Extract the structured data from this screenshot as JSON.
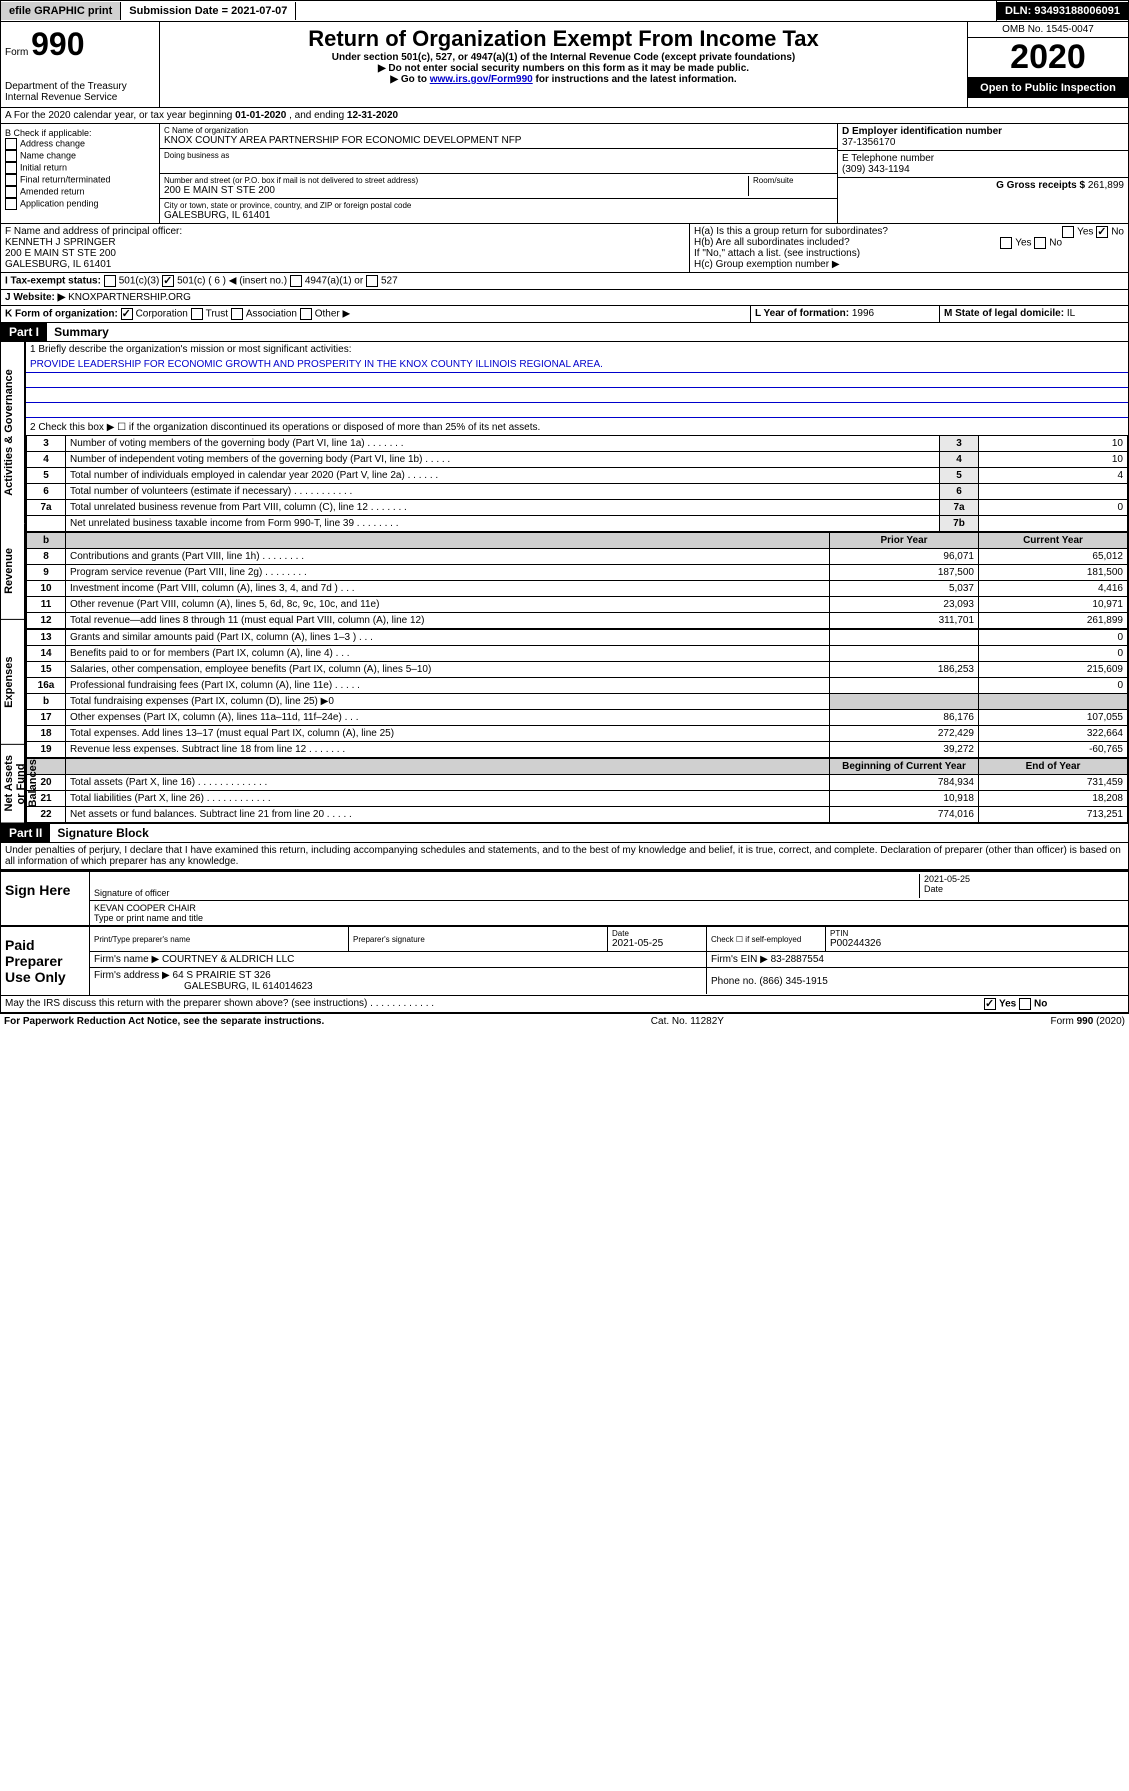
{
  "topbar": {
    "efile": "efile GRAPHIC print",
    "submission_label": "Submission Date =",
    "submission_date": "2021-07-07",
    "dln_label": "DLN:",
    "dln": "93493188006091"
  },
  "header": {
    "form_prefix": "Form",
    "form_number": "990",
    "dept": "Department of the Treasury",
    "irs": "Internal Revenue Service",
    "title": "Return of Organization Exempt From Income Tax",
    "subtitle1": "Under section 501(c), 527, or 4947(a)(1) of the Internal Revenue Code (except private foundations)",
    "subtitle2": "▶ Do not enter social security numbers on this form as it may be made public.",
    "subtitle3_pre": "▶ Go to ",
    "subtitle3_link": "www.irs.gov/Form990",
    "subtitle3_post": " for instructions and the latest information.",
    "omb": "OMB No. 1545-0047",
    "year": "2020",
    "open_public": "Open to Public Inspection"
  },
  "section_a": {
    "text_pre": "A For the 2020 calendar year, or tax year beginning ",
    "begin": "01-01-2020",
    "mid": " , and ending ",
    "end": "12-31-2020"
  },
  "box_b": {
    "label": "B Check if applicable:",
    "items": [
      "Address change",
      "Name change",
      "Initial return",
      "Final return/terminated",
      "Amended return",
      "Application pending"
    ]
  },
  "box_c": {
    "name_label": "C Name of organization",
    "name": "KNOX COUNTY AREA PARTNERSHIP FOR ECONOMIC DEVELOPMENT NFP",
    "dba_label": "Doing business as",
    "addr_label": "Number and street (or P.O. box if mail is not delivered to street address)",
    "room_label": "Room/suite",
    "addr": "200 E MAIN ST STE 200",
    "city_label": "City or town, state or province, country, and ZIP or foreign postal code",
    "city": "GALESBURG, IL  61401"
  },
  "box_d": {
    "label": "D Employer identification number",
    "value": "37-1356170"
  },
  "box_e": {
    "label": "E Telephone number",
    "value": "(309) 343-1194"
  },
  "box_g": {
    "label": "G Gross receipts $",
    "value": "261,899"
  },
  "box_f": {
    "label": "F  Name and address of principal officer:",
    "name": "KENNETH J SPRINGER",
    "addr1": "200 E MAIN ST STE 200",
    "addr2": "GALESBURG, IL  61401"
  },
  "box_h": {
    "ha": "H(a)  Is this a group return for subordinates?",
    "hb": "H(b)  Are all subordinates included?",
    "hb_note": "If \"No,\" attach a list. (see instructions)",
    "hc": "H(c)  Group exemption number ▶",
    "yes": "Yes",
    "no": "No"
  },
  "box_i": {
    "label": "I  Tax-exempt status:",
    "o1": "501(c)(3)",
    "o2": "501(c) ( 6 ) ◀ (insert no.)",
    "o3": "4947(a)(1) or",
    "o4": "527"
  },
  "box_j": {
    "label": "J  Website: ▶",
    "value": "KNOXPARTNERSHIP.ORG"
  },
  "box_k": {
    "label": "K Form of organization:",
    "o1": "Corporation",
    "o2": "Trust",
    "o3": "Association",
    "o4": "Other ▶"
  },
  "box_l": {
    "label": "L Year of formation:",
    "value": "1996"
  },
  "box_m": {
    "label": "M State of legal domicile:",
    "value": "IL"
  },
  "part1": {
    "hdr": "Part I",
    "title": "Summary",
    "side1": "Activities & Governance",
    "side2": "Revenue",
    "side3": "Expenses",
    "side4": "Net Assets or Fund Balances",
    "q1": "1  Briefly describe the organization's mission or most significant activities:",
    "mission": "PROVIDE LEADERSHIP FOR ECONOMIC GROWTH AND PROSPERITY IN THE KNOX COUNTY ILLINOIS REGIONAL AREA.",
    "q2": "2   Check this box ▶ ☐  if the organization discontinued its operations or disposed of more than 25% of its net assets.",
    "rows_gov": [
      {
        "n": "3",
        "t": "Number of voting members of the governing body (Part VI, line 1a)  .   .   .   .   .   .   .",
        "rn": "3",
        "v": "10"
      },
      {
        "n": "4",
        "t": "Number of independent voting members of the governing body (Part VI, line 1b)  .   .   .   .   .",
        "rn": "4",
        "v": "10"
      },
      {
        "n": "5",
        "t": "Total number of individuals employed in calendar year 2020 (Part V, line 2a)  .   .   .   .   .   .",
        "rn": "5",
        "v": "4"
      },
      {
        "n": "6",
        "t": "Total number of volunteers (estimate if necessary)  .   .   .   .   .   .   .   .   .   .   .",
        "rn": "6",
        "v": ""
      },
      {
        "n": "7a",
        "t": "Total unrelated business revenue from Part VIII, column (C), line 12  .   .   .   .   .   .   .",
        "rn": "7a",
        "v": "0"
      },
      {
        "n": "",
        "t": "Net unrelated business taxable income from Form 990-T, line 39  .   .   .   .   .   .   .   .",
        "rn": "7b",
        "v": ""
      }
    ],
    "col_prior": "Prior Year",
    "col_current": "Current Year",
    "rows_rev": [
      {
        "n": "8",
        "t": "Contributions and grants (Part VIII, line 1h)  .   .   .   .   .   .   .   .",
        "p": "96,071",
        "c": "65,012"
      },
      {
        "n": "9",
        "t": "Program service revenue (Part VIII, line 2g)  .   .   .   .   .   .   .   .",
        "p": "187,500",
        "c": "181,500"
      },
      {
        "n": "10",
        "t": "Investment income (Part VIII, column (A), lines 3, 4, and 7d )  .   .   .",
        "p": "5,037",
        "c": "4,416"
      },
      {
        "n": "11",
        "t": "Other revenue (Part VIII, column (A), lines 5, 6d, 8c, 9c, 10c, and 11e)",
        "p": "23,093",
        "c": "10,971"
      },
      {
        "n": "12",
        "t": "Total revenue—add lines 8 through 11 (must equal Part VIII, column (A), line 12)",
        "p": "311,701",
        "c": "261,899"
      }
    ],
    "rows_exp": [
      {
        "n": "13",
        "t": "Grants and similar amounts paid (Part IX, column (A), lines 1–3 )  .   .   .",
        "p": "",
        "c": "0"
      },
      {
        "n": "14",
        "t": "Benefits paid to or for members (Part IX, column (A), line 4)  .   .   .",
        "p": "",
        "c": "0"
      },
      {
        "n": "15",
        "t": "Salaries, other compensation, employee benefits (Part IX, column (A), lines 5–10)",
        "p": "186,253",
        "c": "215,609"
      },
      {
        "n": "16a",
        "t": "Professional fundraising fees (Part IX, column (A), line 11e)  .   .   .   .   .",
        "p": "",
        "c": "0"
      },
      {
        "n": "b",
        "t": "Total fundraising expenses (Part IX, column (D), line 25) ▶0",
        "p": "shade",
        "c": "shade"
      },
      {
        "n": "17",
        "t": "Other expenses (Part IX, column (A), lines 11a–11d, 11f–24e)  .   .   .",
        "p": "86,176",
        "c": "107,055"
      },
      {
        "n": "18",
        "t": "Total expenses. Add lines 13–17 (must equal Part IX, column (A), line 25)",
        "p": "272,429",
        "c": "322,664"
      },
      {
        "n": "19",
        "t": "Revenue less expenses. Subtract line 18 from line 12  .   .   .   .   .   .   .",
        "p": "39,272",
        "c": "-60,765"
      }
    ],
    "col_begin": "Beginning of Current Year",
    "col_end": "End of Year",
    "rows_net": [
      {
        "n": "20",
        "t": "Total assets (Part X, line 16)  .   .   .   .   .   .   .   .   .   .   .   .   .",
        "p": "784,934",
        "c": "731,459"
      },
      {
        "n": "21",
        "t": "Total liabilities (Part X, line 26)  .   .   .   .   .   .   .   .   .   .   .   .",
        "p": "10,918",
        "c": "18,208"
      },
      {
        "n": "22",
        "t": "Net assets or fund balances. Subtract line 21 from line 20  .   .   .   .   .",
        "p": "774,016",
        "c": "713,251"
      }
    ]
  },
  "part2": {
    "hdr": "Part II",
    "title": "Signature Block",
    "declaration": "Under penalties of perjury, I declare that I have examined this return, including accompanying schedules and statements, and to the best of my knowledge and belief, it is true, correct, and complete. Declaration of preparer (other than officer) is based on all information of which preparer has any knowledge."
  },
  "sign": {
    "label": "Sign Here",
    "sig_officer": "Signature of officer",
    "date": "2021-05-25",
    "date_label": "Date",
    "name": "KEVAN COOPER CHAIR",
    "name_label": "Type or print name and title"
  },
  "paid": {
    "label": "Paid Preparer Use Only",
    "h1": "Print/Type preparer's name",
    "h2": "Preparer's signature",
    "h3": "Date",
    "h3v": "2021-05-25",
    "h4": "Check ☐ if self-employed",
    "h5": "PTIN",
    "h5v": "P00244326",
    "firm_label": "Firm's name    ▶",
    "firm": "COURTNEY & ALDRICH LLC",
    "ein_label": "Firm's EIN ▶",
    "ein": "83-2887554",
    "addr_label": "Firm's address ▶",
    "addr": "64 S PRAIRIE ST 326",
    "addr2": "GALESBURG, IL  614014623",
    "phone_label": "Phone no.",
    "phone": "(866) 345-1915"
  },
  "discuss": {
    "text": "May the IRS discuss this return with the preparer shown above? (see instructions)   .   .   .   .   .   .   .   .   .   .   .   .",
    "yes": "Yes",
    "no": "No"
  },
  "footer": {
    "left": "For Paperwork Reduction Act Notice, see the separate instructions.",
    "mid": "Cat. No. 11282Y",
    "right": "Form 990 (2020)"
  }
}
